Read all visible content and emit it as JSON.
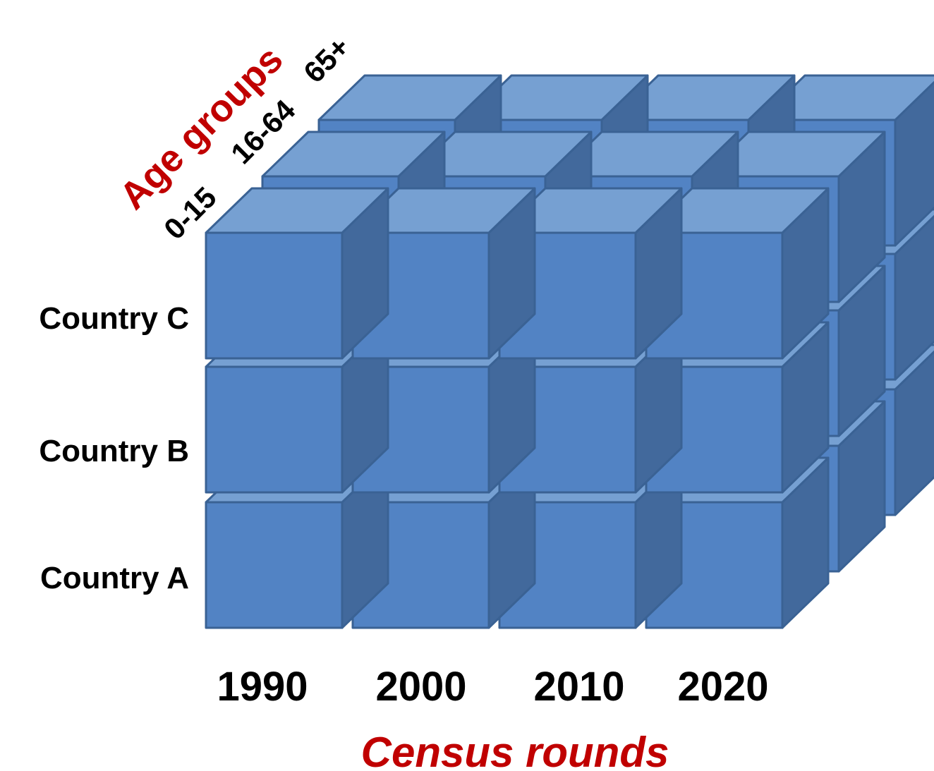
{
  "axis_titles": {
    "age": "Age groups",
    "census": "Census rounds"
  },
  "age_groups": [
    "0-15",
    "16-64",
    "65+"
  ],
  "countries": [
    "Country C",
    "Country B",
    "Country A"
  ],
  "census_years": [
    "1990",
    "2000",
    "2010",
    "2020"
  ],
  "colors": {
    "front": "#5283c4",
    "top": "#76a0d2",
    "side": "#42699c",
    "edge": "#3a6294",
    "label_red": "#c00000"
  }
}
